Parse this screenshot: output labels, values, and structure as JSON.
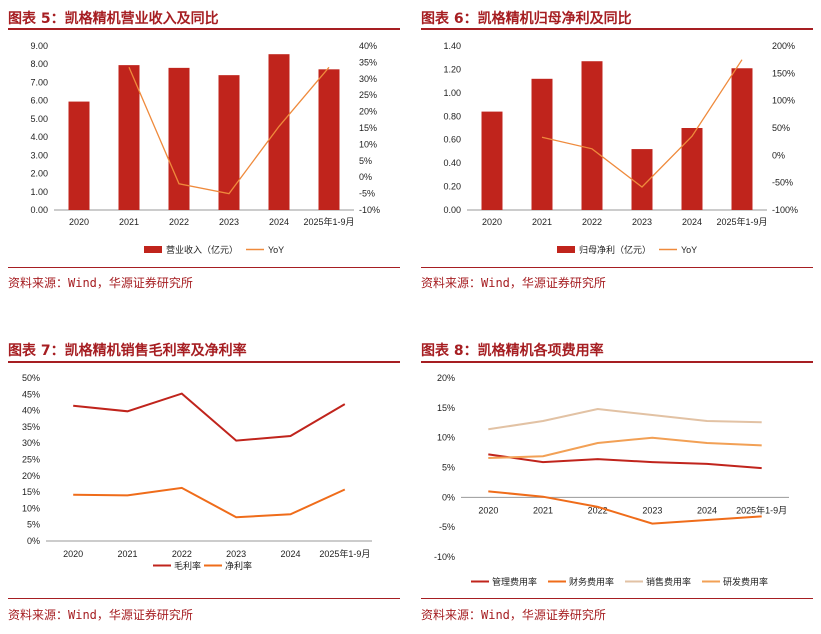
{
  "source_text": "资料来源：Wind，华源证券研究所",
  "colors": {
    "title": "#a61e22",
    "bar": "#c0241c",
    "line_yoy": "#ef8a3c",
    "gross": "#c0241c",
    "net": "#ef6c1a",
    "mgmt": "#c0241c",
    "fin": "#ef6c1a",
    "sales": "#e2c2a4",
    "rd": "#f2a055"
  },
  "chart_data": [
    {
      "id": "revenue",
      "title": "图表 5：凯格精机营业收入及同比",
      "type": "bar",
      "categories": [
        "2020",
        "2021",
        "2022",
        "2023",
        "2024",
        "2025年1-9月"
      ],
      "series": [
        {
          "name": "营业收入（亿元）",
          "type": "bar",
          "axis": "left",
          "values": [
            5.95,
            7.95,
            7.8,
            7.4,
            8.55,
            7.72
          ]
        },
        {
          "name": "YoY",
          "type": "line",
          "axis": "right",
          "values": [
            null,
            33.5,
            -2.0,
            -5.0,
            15.5,
            33.5
          ]
        }
      ],
      "y_left": {
        "min": 0,
        "max": 9,
        "step": 1,
        "ticks": [
          "0.00",
          "1.00",
          "2.00",
          "3.00",
          "4.00",
          "5.00",
          "6.00",
          "7.00",
          "8.00",
          "9.00"
        ]
      },
      "y_right": {
        "min": -10,
        "max": 40,
        "step": 5,
        "ticks": [
          "-10%",
          "-5%",
          "0%",
          "5%",
          "10%",
          "15%",
          "20%",
          "25%",
          "30%",
          "35%",
          "40%"
        ]
      }
    },
    {
      "id": "netprofit",
      "title": "图表 6：凯格精机归母净利及同比",
      "type": "bar",
      "categories": [
        "2020",
        "2021",
        "2022",
        "2023",
        "2024",
        "2025年1-9月"
      ],
      "series": [
        {
          "name": "归母净利（亿元）",
          "type": "bar",
          "axis": "left",
          "values": [
            0.84,
            1.12,
            1.27,
            0.52,
            0.7,
            1.21
          ]
        },
        {
          "name": "YoY",
          "type": "line",
          "axis": "right",
          "values": [
            null,
            33,
            12,
            -58,
            35,
            175
          ]
        }
      ],
      "y_left": {
        "min": 0,
        "max": 1.4,
        "step": 0.2,
        "ticks": [
          "0.00",
          "0.20",
          "0.40",
          "0.60",
          "0.80",
          "1.00",
          "1.20",
          "1.40"
        ]
      },
      "y_right": {
        "min": -100,
        "max": 200,
        "step": 50,
        "ticks": [
          "-100%",
          "-50%",
          "0%",
          "50%",
          "100%",
          "150%",
          "200%"
        ]
      }
    },
    {
      "id": "margins",
      "title": "图表 7：凯格精机销售毛利率及净利率",
      "type": "line",
      "categories": [
        "2020",
        "2021",
        "2022",
        "2023",
        "2024",
        "2025年1-9月"
      ],
      "series": [
        {
          "name": "毛利率",
          "values": [
            41.5,
            39.8,
            45.2,
            30.8,
            32.2,
            42.0
          ]
        },
        {
          "name": "净利率",
          "values": [
            14.2,
            14.0,
            16.3,
            7.3,
            8.2,
            15.8
          ]
        }
      ],
      "y": {
        "min": 0,
        "max": 50,
        "step": 5,
        "ticks": [
          "0%",
          "5%",
          "10%",
          "15%",
          "20%",
          "25%",
          "30%",
          "35%",
          "40%",
          "45%",
          "50%"
        ]
      }
    },
    {
      "id": "expenses",
      "title": "图表 8：凯格精机各项费用率",
      "type": "line",
      "categories": [
        "2020",
        "2021",
        "2022",
        "2023",
        "2024",
        "2025年1-9月"
      ],
      "series": [
        {
          "name": "管理费用率",
          "values": [
            7.2,
            5.9,
            6.4,
            5.9,
            5.6,
            4.9
          ]
        },
        {
          "name": "财务费用率",
          "values": [
            1.0,
            0.1,
            -1.6,
            -4.4,
            -3.8,
            -3.2
          ]
        },
        {
          "name": "销售费用率",
          "values": [
            11.4,
            12.8,
            14.8,
            13.8,
            12.8,
            12.6
          ]
        },
        {
          "name": "研发费用率",
          "values": [
            6.6,
            6.9,
            9.1,
            10.0,
            9.1,
            8.7
          ]
        }
      ],
      "y": {
        "min": -10,
        "max": 20,
        "step": 5,
        "ticks": [
          "-10%",
          "-5%",
          "0%",
          "5%",
          "10%",
          "15%",
          "20%"
        ]
      }
    }
  ]
}
